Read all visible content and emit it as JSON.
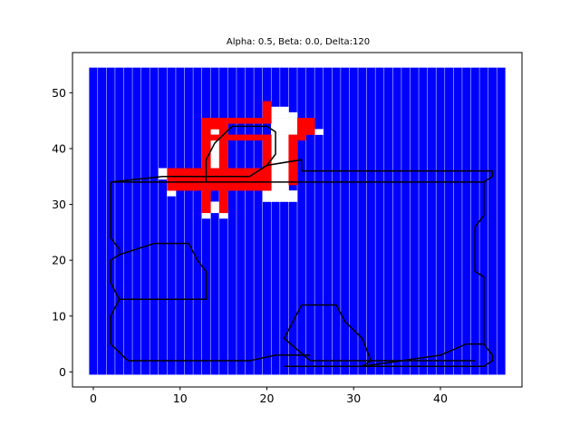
{
  "chart_data": {
    "type": "heatmap",
    "title": "Alpha: 0.5, Beta: 0.0, Delta:120",
    "xlabel": "",
    "ylabel": "",
    "xlim": [
      -2.4,
      49.4
    ],
    "ylim": [
      -2.7,
      57.2
    ],
    "xticks": [
      0,
      10,
      20,
      30,
      40
    ],
    "yticks": [
      0,
      10,
      20,
      30,
      40,
      50
    ],
    "grid": false,
    "colors": {
      "free": "#0000ff",
      "occupied": "#ff0000",
      "unknown": "#ffffff",
      "path": "#000000"
    },
    "grid_extent": {
      "x": [
        0,
        47
      ],
      "y": [
        0,
        54
      ]
    },
    "cells_red": [
      [
        13,
        45
      ],
      [
        14,
        45
      ],
      [
        15,
        45
      ],
      [
        16,
        45
      ],
      [
        17,
        45
      ],
      [
        18,
        45
      ],
      [
        19,
        45
      ],
      [
        20,
        45
      ],
      [
        13,
        44
      ],
      [
        14,
        44
      ],
      [
        13,
        43
      ],
      [
        13,
        42
      ],
      [
        13,
        41
      ],
      [
        13,
        40
      ],
      [
        13,
        39
      ],
      [
        13,
        38
      ],
      [
        13,
        37
      ],
      [
        13,
        36
      ],
      [
        13,
        35
      ],
      [
        13,
        34
      ],
      [
        13,
        33
      ],
      [
        13,
        32
      ],
      [
        13,
        31
      ],
      [
        13,
        30
      ],
      [
        13,
        29
      ],
      [
        15,
        44
      ],
      [
        15,
        43
      ],
      [
        15,
        42
      ],
      [
        15,
        41
      ],
      [
        15,
        40
      ],
      [
        15,
        39
      ],
      [
        15,
        38
      ],
      [
        15,
        37
      ],
      [
        15,
        36
      ],
      [
        15,
        35
      ],
      [
        15,
        34
      ],
      [
        15,
        33
      ],
      [
        15,
        32
      ],
      [
        15,
        31
      ],
      [
        15,
        30
      ],
      [
        15,
        29
      ],
      [
        14,
        42
      ],
      [
        16,
        42
      ],
      [
        17,
        42
      ],
      [
        18,
        42
      ],
      [
        19,
        42
      ],
      [
        20,
        42
      ],
      [
        20,
        48
      ],
      [
        20,
        47
      ],
      [
        20,
        46
      ],
      [
        20,
        41
      ],
      [
        20,
        40
      ],
      [
        20,
        39
      ],
      [
        20,
        38
      ],
      [
        20,
        37
      ],
      [
        20,
        36
      ],
      [
        20,
        35
      ],
      [
        20,
        34
      ],
      [
        9,
        36
      ],
      [
        10,
        36
      ],
      [
        11,
        36
      ],
      [
        12,
        36
      ],
      [
        14,
        36
      ],
      [
        16,
        36
      ],
      [
        17,
        36
      ],
      [
        18,
        36
      ],
      [
        19,
        36
      ],
      [
        9,
        35
      ],
      [
        10,
        35
      ],
      [
        11,
        35
      ],
      [
        12,
        35
      ],
      [
        14,
        35
      ],
      [
        16,
        35
      ],
      [
        17,
        35
      ],
      [
        18,
        35
      ],
      [
        19,
        35
      ],
      [
        9,
        34
      ],
      [
        10,
        34
      ],
      [
        11,
        34
      ],
      [
        12,
        34
      ],
      [
        14,
        34
      ],
      [
        16,
        34
      ],
      [
        17,
        34
      ],
      [
        18,
        34
      ],
      [
        19,
        34
      ],
      [
        9,
        33
      ],
      [
        10,
        33
      ],
      [
        11,
        33
      ],
      [
        12,
        33
      ],
      [
        14,
        33
      ],
      [
        16,
        33
      ],
      [
        17,
        33
      ],
      [
        18,
        33
      ],
      [
        19,
        33
      ],
      [
        20,
        33
      ],
      [
        24,
        45
      ],
      [
        25,
        45
      ],
      [
        24,
        44
      ],
      [
        25,
        44
      ],
      [
        24,
        43
      ],
      [
        25,
        43
      ],
      [
        24,
        42
      ],
      [
        23,
        42
      ],
      [
        23,
        41
      ],
      [
        23,
        40
      ],
      [
        23,
        39
      ],
      [
        23,
        38
      ],
      [
        23,
        37
      ],
      [
        23,
        36
      ],
      [
        23,
        35
      ],
      [
        23,
        34
      ]
    ],
    "cells_white": [
      [
        21,
        47
      ],
      [
        22,
        47
      ],
      [
        21,
        46
      ],
      [
        22,
        46
      ],
      [
        23,
        46
      ],
      [
        21,
        45
      ],
      [
        22,
        45
      ],
      [
        23,
        45
      ],
      [
        21,
        44
      ],
      [
        22,
        44
      ],
      [
        23,
        44
      ],
      [
        21,
        43
      ],
      [
        22,
        43
      ],
      [
        23,
        43
      ],
      [
        26,
        43
      ],
      [
        21,
        42
      ],
      [
        22,
        42
      ],
      [
        21,
        41
      ],
      [
        22,
        41
      ],
      [
        21,
        40
      ],
      [
        22,
        40
      ],
      [
        21,
        39
      ],
      [
        22,
        39
      ],
      [
        21,
        38
      ],
      [
        22,
        38
      ],
      [
        21,
        37
      ],
      [
        22,
        37
      ],
      [
        21,
        36
      ],
      [
        22,
        36
      ],
      [
        21,
        35
      ],
      [
        22,
        35
      ],
      [
        21,
        34
      ],
      [
        22,
        34
      ],
      [
        21,
        33
      ],
      [
        22,
        33
      ],
      [
        20,
        32
      ],
      [
        21,
        32
      ],
      [
        22,
        32
      ],
      [
        23,
        32
      ],
      [
        20,
        31
      ],
      [
        21,
        31
      ],
      [
        22,
        31
      ],
      [
        23,
        31
      ],
      [
        8,
        36
      ],
      [
        8,
        35
      ],
      [
        9,
        32
      ],
      [
        14,
        43
      ],
      [
        14,
        41
      ],
      [
        14,
        40
      ],
      [
        14,
        39
      ],
      [
        14,
        38
      ],
      [
        14,
        37
      ],
      [
        14,
        30
      ],
      [
        14,
        29
      ],
      [
        13,
        28
      ],
      [
        15,
        28
      ]
    ],
    "paths": [
      [
        [
          2,
          34
        ],
        [
          2,
          24
        ],
        [
          3,
          22
        ],
        [
          3,
          21
        ],
        [
          2,
          20
        ],
        [
          2,
          16
        ],
        [
          3,
          13
        ],
        [
          2,
          10
        ],
        [
          2,
          5
        ],
        [
          4,
          2
        ],
        [
          18,
          2
        ],
        [
          21,
          3
        ],
        [
          24,
          3
        ],
        [
          25,
          3
        ]
      ],
      [
        [
          3,
          21
        ],
        [
          7,
          23
        ],
        [
          11,
          23
        ],
        [
          12,
          20
        ],
        [
          13,
          18
        ],
        [
          13,
          13
        ],
        [
          3,
          13
        ],
        [
          2,
          16
        ]
      ],
      [
        [
          2,
          34
        ],
        [
          8,
          35
        ],
        [
          18,
          35
        ],
        [
          20,
          37
        ],
        [
          24,
          38
        ],
        [
          24,
          36
        ],
        [
          46,
          36
        ],
        [
          46,
          35
        ],
        [
          45,
          34
        ],
        [
          45,
          28
        ],
        [
          44,
          26
        ],
        [
          44,
          18
        ],
        [
          45,
          17
        ],
        [
          45,
          5
        ],
        [
          46,
          3
        ],
        [
          46,
          2
        ],
        [
          45,
          1
        ],
        [
          22,
          1
        ]
      ],
      [
        [
          2,
          34
        ],
        [
          24,
          34
        ],
        [
          45,
          34
        ]
      ],
      [
        [
          13,
          34
        ],
        [
          13,
          38
        ],
        [
          14,
          41
        ],
        [
          16,
          44
        ],
        [
          20,
          44
        ],
        [
          21,
          43
        ],
        [
          21,
          39
        ],
        [
          20,
          37
        ],
        [
          24,
          38
        ]
      ],
      [
        [
          22,
          6
        ],
        [
          23,
          9
        ],
        [
          24,
          12
        ],
        [
          28,
          12
        ],
        [
          29,
          9
        ],
        [
          31,
          6
        ],
        [
          32,
          2
        ],
        [
          31,
          1
        ],
        [
          40,
          3
        ],
        [
          43,
          5
        ],
        [
          44,
          5
        ],
        [
          45,
          5
        ]
      ],
      [
        [
          22,
          6
        ],
        [
          25,
          2
        ],
        [
          32,
          2
        ],
        [
          44,
          2
        ]
      ]
    ]
  }
}
